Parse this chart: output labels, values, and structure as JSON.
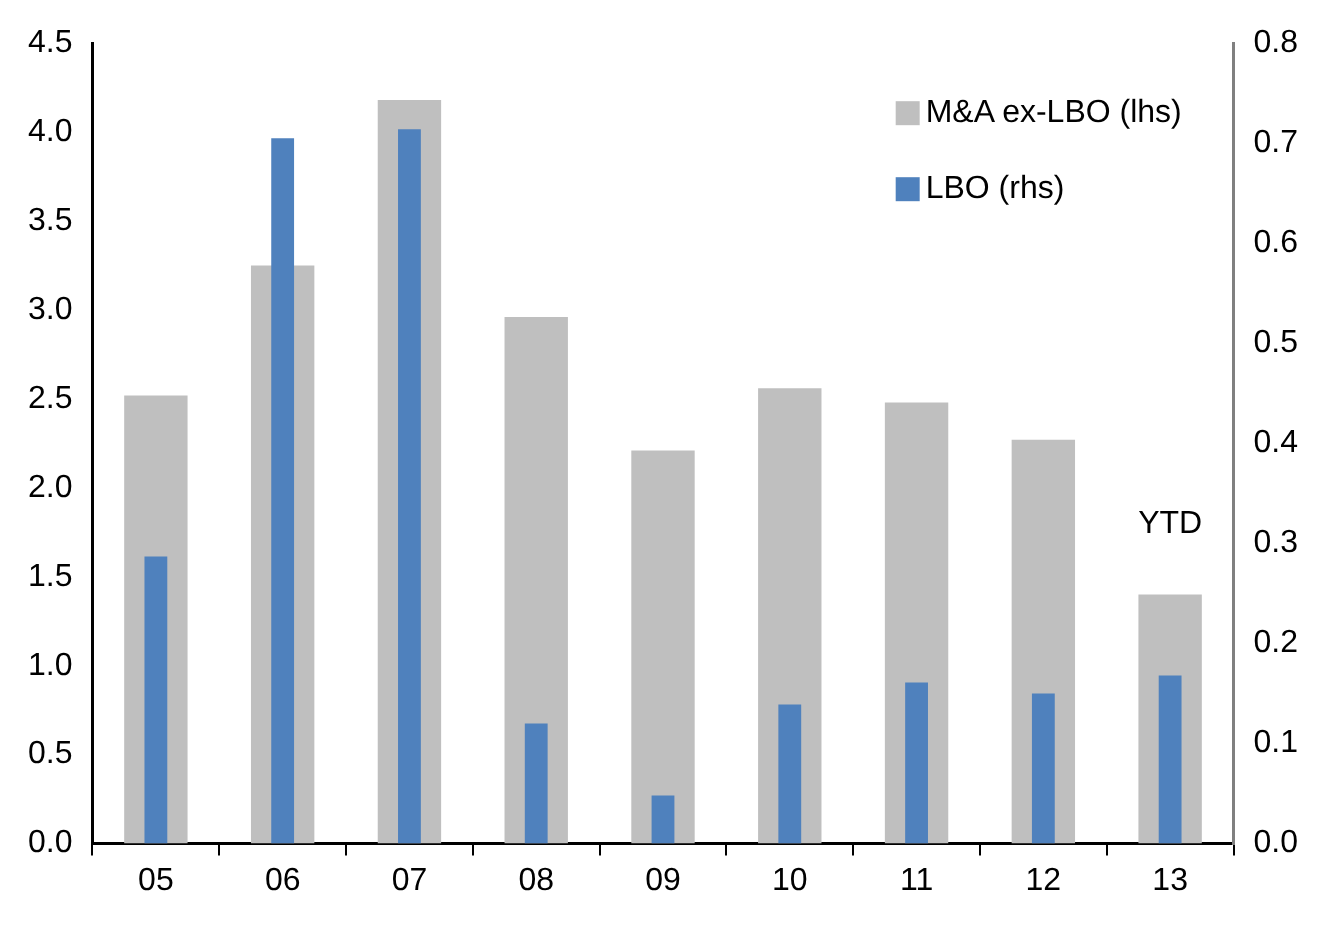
{
  "chart_data": {
    "type": "bar",
    "categories": [
      "05",
      "06",
      "07",
      "08",
      "09",
      "10",
      "11",
      "12",
      "13"
    ],
    "series": [
      {
        "name": "M&A ex-LBO (lhs)",
        "color": "#bfbfbf",
        "values": [
          2.52,
          3.25,
          4.18,
          2.96,
          2.21,
          2.56,
          2.48,
          2.27,
          1.4
        ]
      },
      {
        "name": "LBO (rhs)",
        "color": "#4f81bd",
        "axis": "y2",
        "values": [
          0.287,
          0.705,
          0.714,
          0.12,
          0.048,
          0.139,
          0.161,
          0.15,
          0.168
        ]
      }
    ],
    "ylim": [
      0,
      4.5
    ],
    "yticks": [
      {
        "value": 0,
        "label": "0.0"
      },
      {
        "value": 0.5,
        "label": "0.5"
      },
      {
        "value": 1,
        "label": "1.0"
      },
      {
        "value": 1.5,
        "label": "1.5"
      },
      {
        "value": 2,
        "label": "2.0"
      },
      {
        "value": 2.5,
        "label": "2.5"
      },
      {
        "value": 3,
        "label": "3.0"
      },
      {
        "value": 3.5,
        "label": "3.5"
      },
      {
        "value": 4,
        "label": "4.0"
      },
      {
        "value": 4.5,
        "label": "4.5"
      }
    ],
    "y2lim": [
      0,
      0.8
    ],
    "y2ticks": [
      {
        "value": 0,
        "label": "0.0"
      },
      {
        "value": 0.1,
        "label": "0.1"
      },
      {
        "value": 0.2,
        "label": "0.2"
      },
      {
        "value": 0.3,
        "label": "0.3"
      },
      {
        "value": 0.4,
        "label": "0.4"
      },
      {
        "value": 0.5,
        "label": "0.5"
      },
      {
        "value": 0.6,
        "label": "0.6"
      },
      {
        "value": 0.7,
        "label": "0.7"
      },
      {
        "value": 0.8,
        "label": "0.8"
      }
    ],
    "annotations": [
      "YTD"
    ],
    "grid": false,
    "legend": "top right"
  }
}
